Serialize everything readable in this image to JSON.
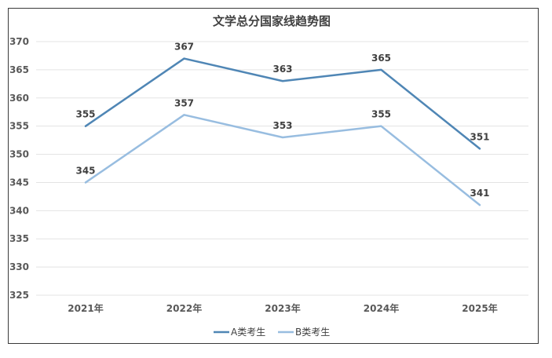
{
  "chart_data": {
    "type": "line",
    "title": "文学总分国家线趋势图",
    "xlabel": "",
    "ylabel": "",
    "categories": [
      "2021年",
      "2022年",
      "2023年",
      "2024年",
      "2025年"
    ],
    "ylim": [
      325,
      370
    ],
    "ytick_step": 5,
    "grid": true,
    "legend_position": "bottom",
    "series": [
      {
        "name": "A类考生",
        "color": "#4f86b5",
        "values": [
          355,
          367,
          363,
          365,
          351
        ]
      },
      {
        "name": "B类考生",
        "color": "#98bde0",
        "values": [
          345,
          357,
          353,
          355,
          341
        ]
      }
    ]
  }
}
